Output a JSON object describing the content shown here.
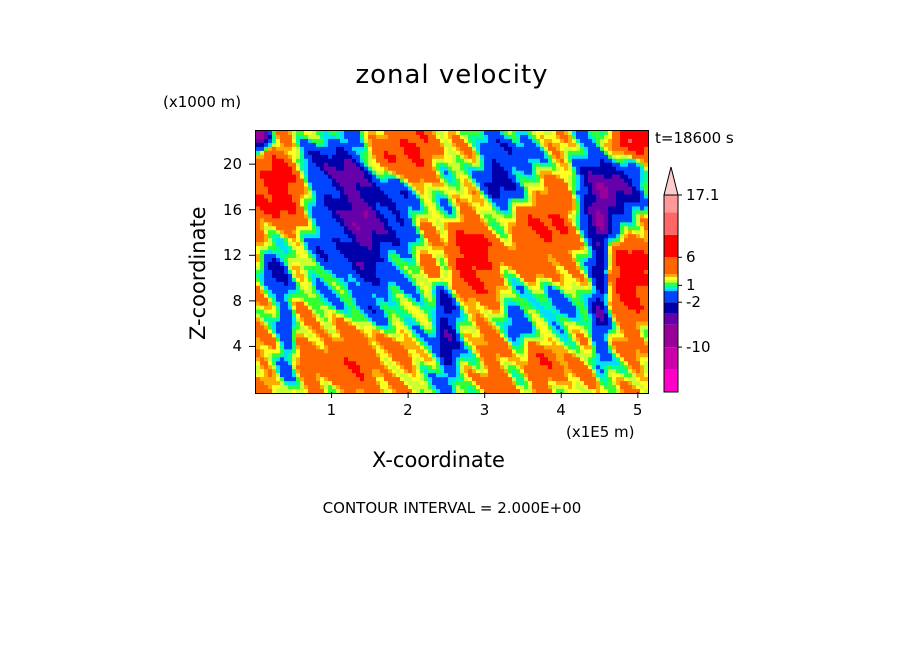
{
  "chart_data": {
    "type": "heatmap",
    "title": "zonal velocity",
    "xlabel": "X-coordinate",
    "ylabel": "Z-coordinate",
    "x_units": "(x1E5 m)",
    "z_units": "(x1000 m)",
    "time_label": "t=18600 s",
    "contour_note": "CONTOUR INTERVAL = 2.000E+00",
    "xlim": [
      0,
      5.12
    ],
    "ylim": [
      0,
      23
    ],
    "x_ticks": [
      1,
      2,
      3,
      4,
      5
    ],
    "y_ticks": [
      4,
      8,
      12,
      16,
      20
    ],
    "colorbar": {
      "min": -18,
      "max": 17.1,
      "labels": [
        "17.1",
        "6",
        "1",
        "-2",
        "-10"
      ],
      "label_values": [
        17.1,
        6,
        1,
        -2,
        -10
      ],
      "levels": [
        {
          "lo": -18,
          "hi": -14,
          "color": "#ff00cc"
        },
        {
          "lo": -14,
          "hi": -10,
          "color": "#cc00aa"
        },
        {
          "lo": -10,
          "hi": -6,
          "color": "#990099"
        },
        {
          "lo": -6,
          "hi": -4,
          "color": "#6600aa"
        },
        {
          "lo": -4,
          "hi": -2,
          "color": "#0000aa"
        },
        {
          "lo": -2,
          "hi": 0,
          "color": "#0044ff"
        },
        {
          "lo": 0,
          "hi": 0.5,
          "color": "#00ddff"
        },
        {
          "lo": 0.5,
          "hi": 1,
          "color": "#00ff99"
        },
        {
          "lo": 1,
          "hi": 1.5,
          "color": "#33ff33"
        },
        {
          "lo": 1.5,
          "hi": 2,
          "color": "#ccff33"
        },
        {
          "lo": 2,
          "hi": 2.5,
          "color": "#ffff22"
        },
        {
          "lo": 2.5,
          "hi": 3,
          "color": "#ffaa00"
        },
        {
          "lo": 3,
          "hi": 6,
          "color": "#ff6600"
        },
        {
          "lo": 6,
          "hi": 10,
          "color": "#ff0000"
        },
        {
          "lo": 10,
          "hi": 14,
          "color": "#ff6666"
        },
        {
          "lo": 14,
          "hi": 17.1,
          "color": "#ff9999"
        },
        {
          "lo": 17.1,
          "hi": 20,
          "color": "#ffcccc"
        }
      ]
    },
    "features": [
      {
        "x": 1.4,
        "z": 15,
        "sx": 0.45,
        "sz": 3.5,
        "a": -7
      },
      {
        "x": 0.95,
        "z": 20,
        "sx": 0.35,
        "sz": 2,
        "a": -5
      },
      {
        "x": 0.25,
        "z": 11,
        "sx": 0.12,
        "sz": 1.5,
        "a": -4
      },
      {
        "x": 3.3,
        "z": 19,
        "sx": 0.3,
        "sz": 3,
        "a": -5
      },
      {
        "x": 4.6,
        "z": 17,
        "sx": 0.3,
        "sz": 3.5,
        "a": -8
      },
      {
        "x": 2.45,
        "z": 9,
        "sx": 0.1,
        "sz": 5,
        "a": -5
      },
      {
        "x": 2.55,
        "z": 4,
        "sx": 0.1,
        "sz": 3,
        "a": -4
      },
      {
        "x": 3.45,
        "z": 5,
        "sx": 0.15,
        "sz": 3,
        "a": -3
      },
      {
        "x": 4.5,
        "z": 9,
        "sx": 0.08,
        "sz": 5,
        "a": -5
      },
      {
        "x": 0.4,
        "z": 5,
        "sx": 0.08,
        "sz": 4,
        "a": -3
      },
      {
        "x": 0.3,
        "z": 18,
        "sx": 0.35,
        "sz": 2.5,
        "a": 6
      },
      {
        "x": 1.9,
        "z": 21,
        "sx": 0.3,
        "sz": 1.5,
        "a": 6
      },
      {
        "x": 2.7,
        "z": 12,
        "sx": 0.35,
        "sz": 2.5,
        "a": 6
      },
      {
        "x": 3.8,
        "z": 15,
        "sx": 0.3,
        "sz": 3,
        "a": 5
      },
      {
        "x": 4.9,
        "z": 11,
        "sx": 0.25,
        "sz": 3,
        "a": 7
      },
      {
        "x": 1.2,
        "z": 3,
        "sx": 0.4,
        "sz": 2,
        "a": 3
      },
      {
        "x": 3.6,
        "z": 3,
        "sx": 0.4,
        "sz": 2,
        "a": 3
      },
      {
        "x": 4.9,
        "z": 22,
        "sx": 0.2,
        "sz": 1,
        "a": 10
      },
      {
        "x": 0.05,
        "z": 22.5,
        "sx": 0.1,
        "sz": 0.8,
        "a": -10
      },
      {
        "x": 4.0,
        "z": 7,
        "sx": 0.4,
        "sz": 2,
        "a": -2.5
      },
      {
        "x": 1.6,
        "z": 8,
        "sx": 0.4,
        "sz": 2,
        "a": -2
      }
    ]
  }
}
